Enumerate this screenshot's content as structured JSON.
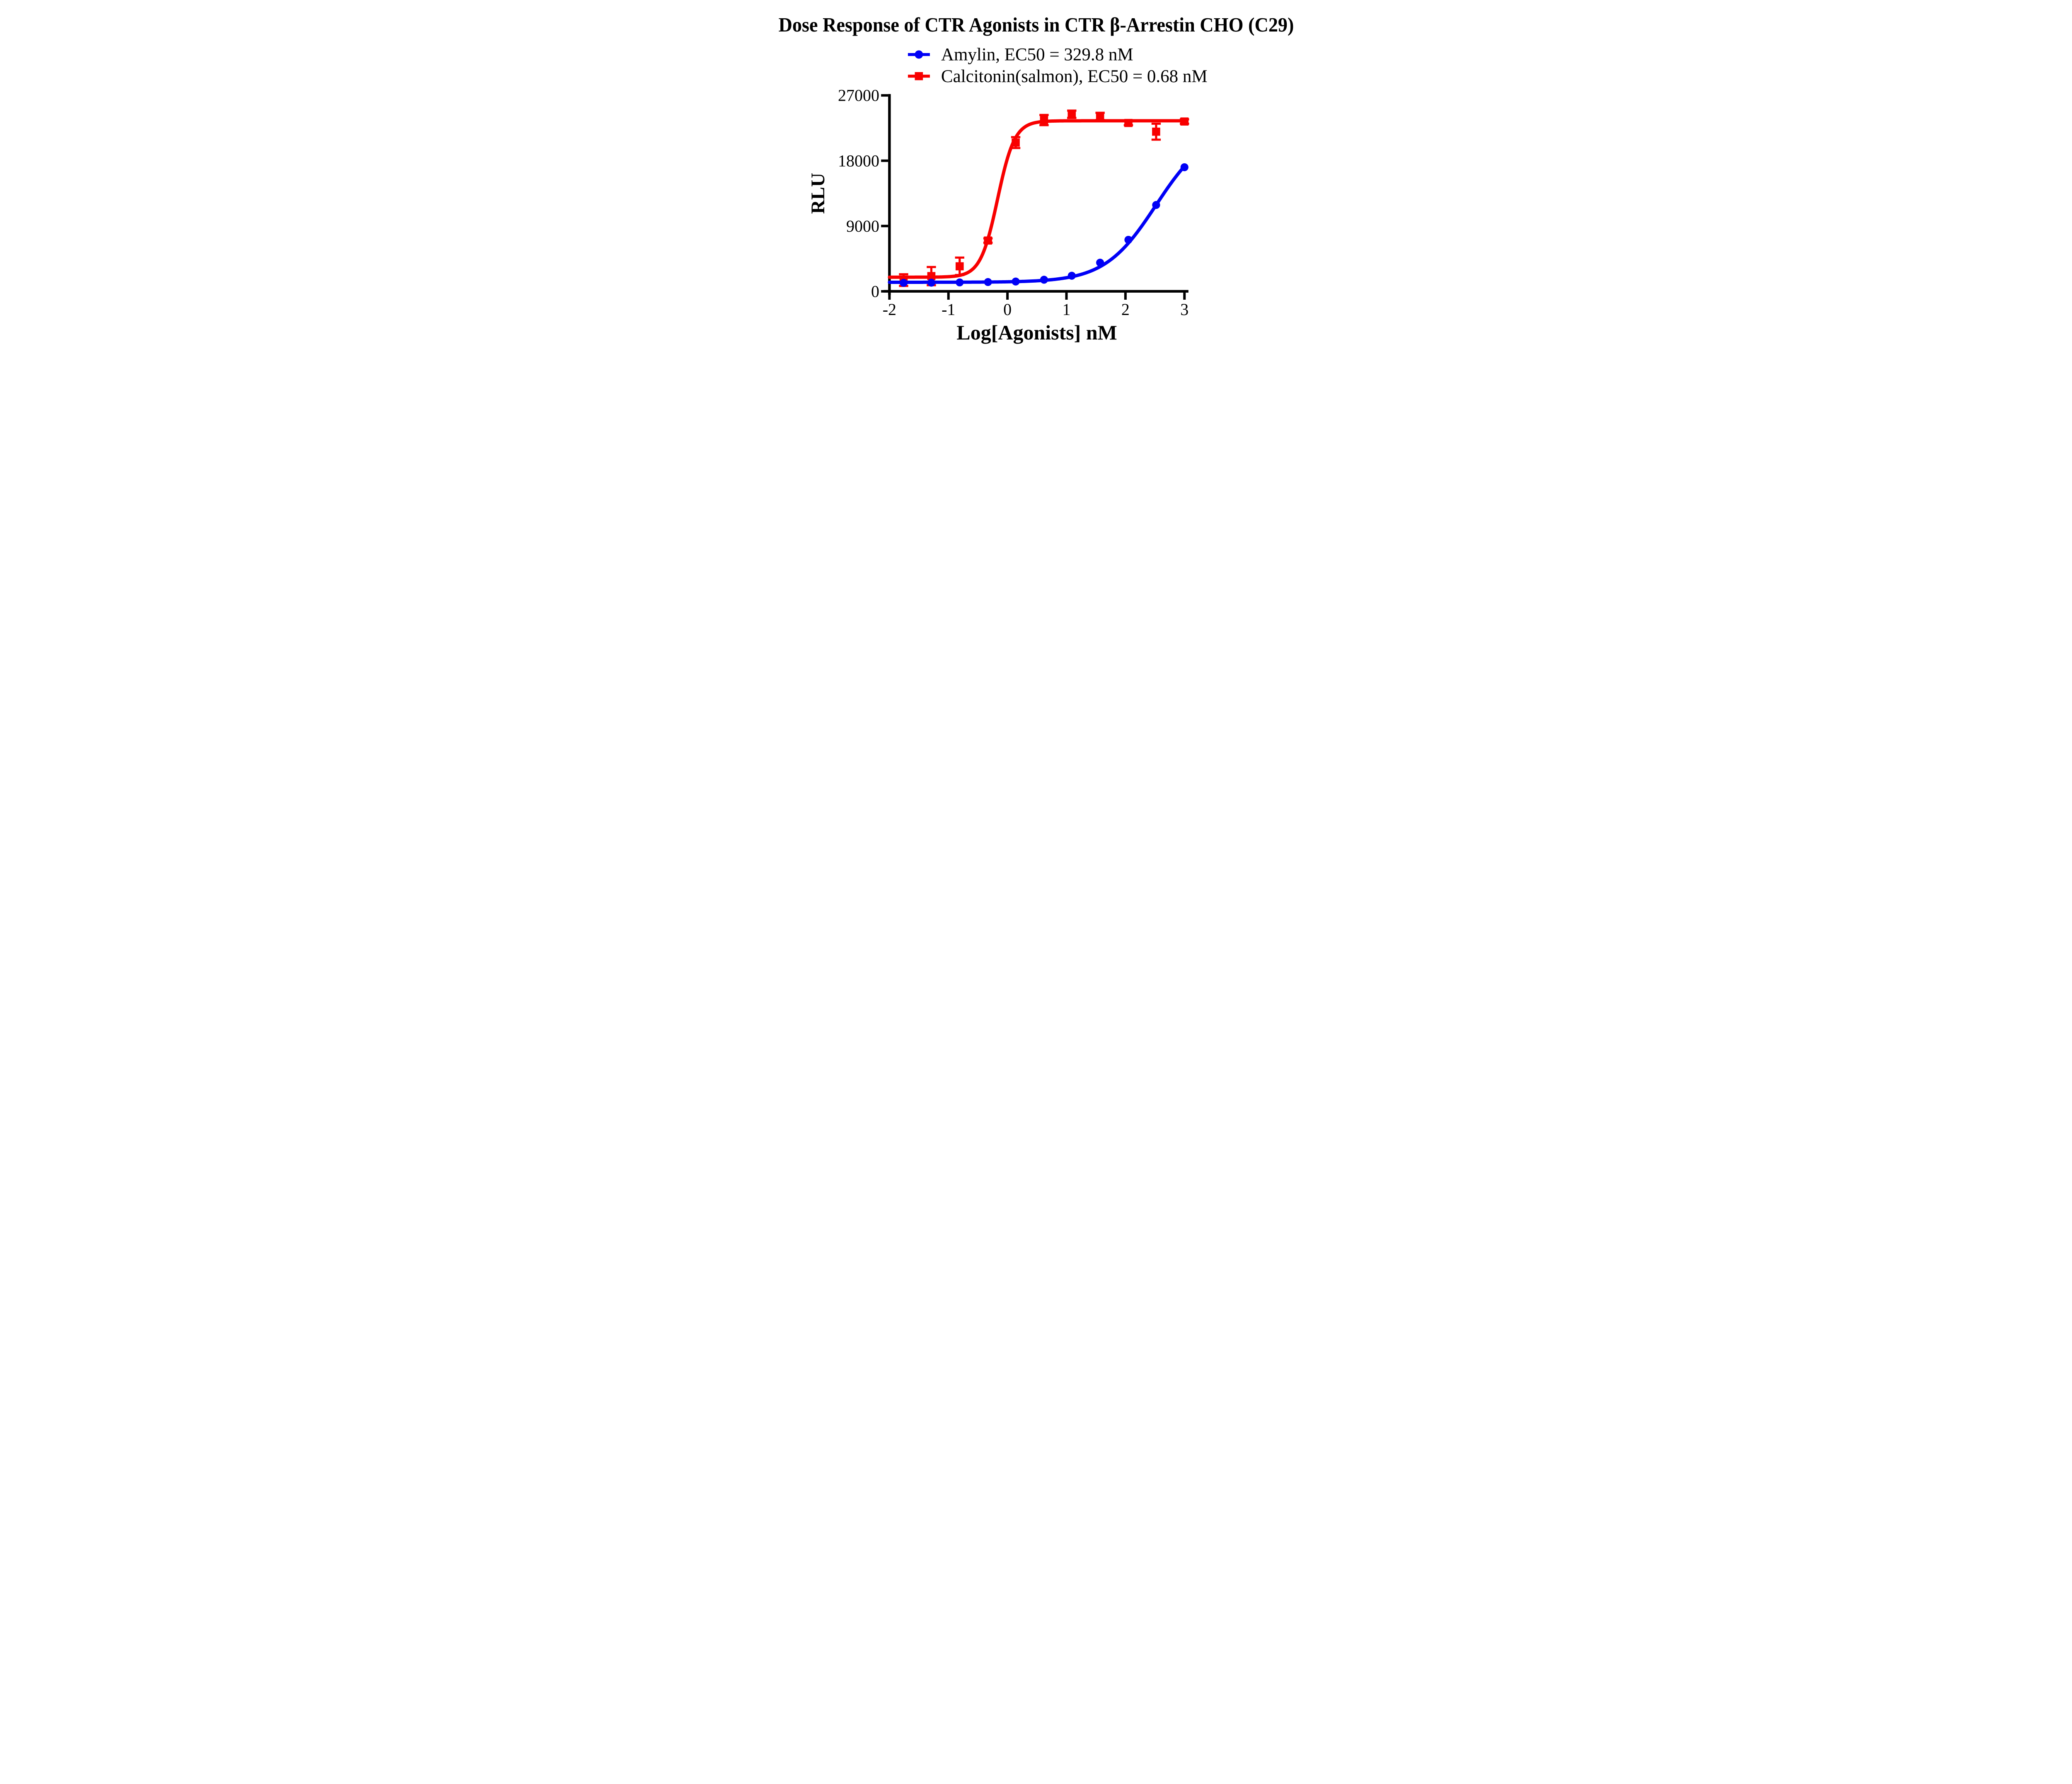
{
  "page": {
    "background": "#ffffff"
  },
  "chart_data": {
    "type": "scatter",
    "title": "Dose Response of CTR Agonists in CTR β-Arrestin CHO (C29)",
    "xlabel": "Log[Agonists] nM",
    "ylabel": "RLU",
    "xlim": [
      -2,
      3
    ],
    "ylim": [
      0,
      27000
    ],
    "xticks": [
      "-2",
      "-1",
      "0",
      "1",
      "2",
      "3"
    ],
    "xtick_values": [
      -2,
      -1,
      0,
      1,
      2,
      3
    ],
    "yticks": [
      "0",
      "9000",
      "18000",
      "27000"
    ],
    "ytick_values": [
      0,
      9000,
      18000,
      27000
    ],
    "grid": false,
    "legend_position": "top-center",
    "x": [
      -1.76,
      -1.29,
      -0.81,
      -0.33,
      0.14,
      0.62,
      1.09,
      1.57,
      2.05,
      2.52,
      3.0
    ],
    "series": [
      {
        "name": "Amylin, EC50 = 329.8 nM",
        "color": "#0000F6",
        "marker": "circle",
        "values": [
          1170,
          1190,
          1230,
          1280,
          1350,
          1600,
          2150,
          3950,
          7100,
          11900,
          17100
        ],
        "errors": [
          0,
          0,
          0,
          0,
          0,
          0,
          0,
          0,
          0,
          0,
          0
        ],
        "fit": {
          "bottom": 1250,
          "top": 22500,
          "logEC50": 2.518,
          "hill": 1.0
        }
      },
      {
        "name": "Calcitonin(salmon), EC50 = 0.68 nM",
        "color": "#F80000",
        "marker": "square",
        "values": [
          1550,
          2100,
          3450,
          7000,
          20500,
          23600,
          24400,
          24100,
          23200,
          22000,
          23400
        ],
        "errors": [
          800,
          1250,
          1200,
          300,
          750,
          700,
          500,
          500,
          300,
          1100,
          300
        ],
        "fit": {
          "bottom": 1950,
          "top": 23500,
          "logEC50": -0.167,
          "hill": 3.0
        }
      }
    ]
  }
}
